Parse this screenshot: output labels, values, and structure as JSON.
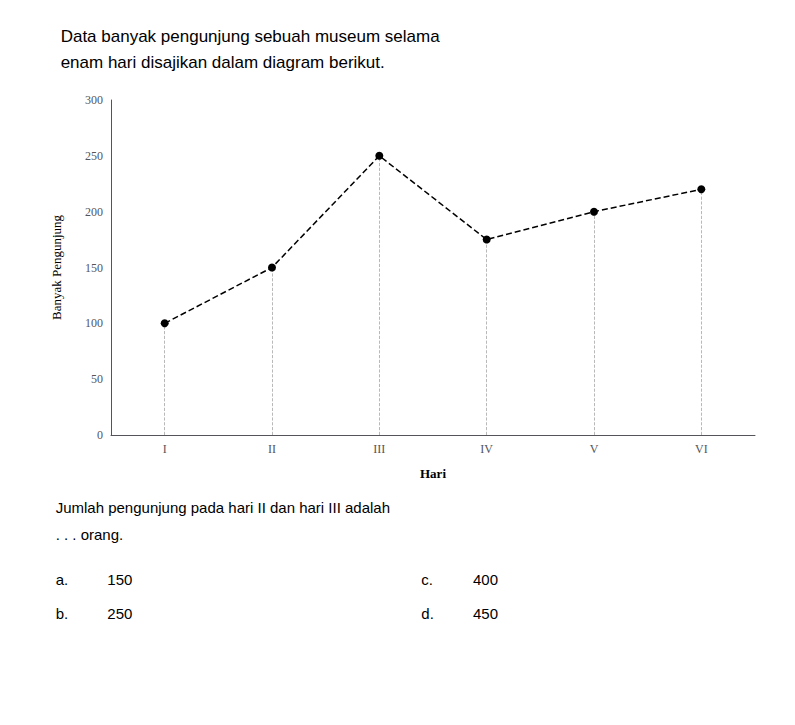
{
  "chart_data": {
    "type": "line",
    "title": "Data banyak pengunjung sebuah museum selama\nenam hari disajikan dalam diagram berikut.",
    "categories": [
      "I",
      "II",
      "III",
      "IV",
      "V",
      "VI"
    ],
    "values": [
      100,
      150,
      250,
      175,
      200,
      220
    ],
    "x_label": "Hari",
    "y_label": "Banyak Pengunjung",
    "ylim": [
      0,
      300
    ],
    "yticks": [
      0,
      50,
      100,
      150,
      200,
      250,
      300
    ],
    "color": "#000000",
    "marker": "circle",
    "line_style": "dashed",
    "grid": false,
    "annotations": [
      "Jumlah pengunjung pada hari II dan hari III adalah",
      ". . . orang.",
      "a.",
      "150",
      "c.",
      "400",
      "b.",
      "250",
      "d.",
      "450"
    ]
  }
}
